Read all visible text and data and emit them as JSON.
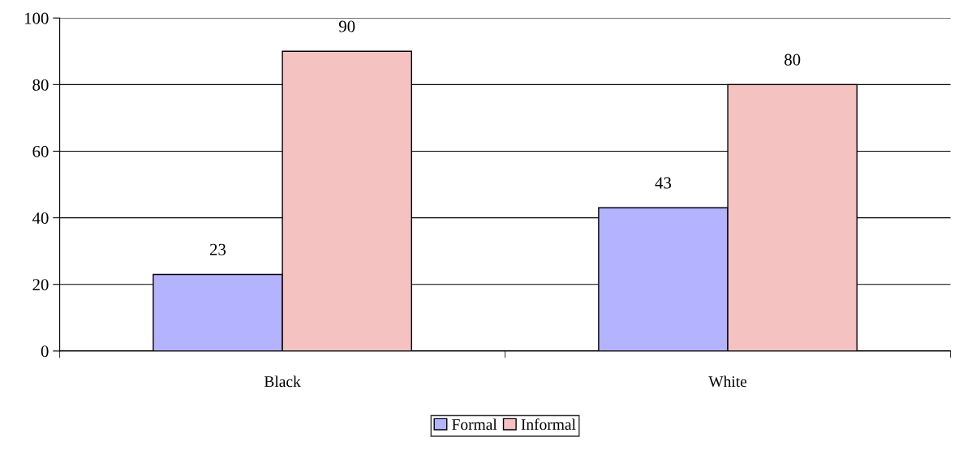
{
  "chart_data": {
    "type": "bar",
    "categories": [
      "Black",
      "White"
    ],
    "series": [
      {
        "name": "Formal",
        "color": "#b3b3ff",
        "values": [
          23,
          43
        ]
      },
      {
        "name": "Informal",
        "color": "#f5c2c2",
        "values": [
          90,
          80
        ]
      }
    ],
    "ylim": [
      0,
      100
    ],
    "yticks": [
      0,
      20,
      40,
      60,
      80,
      100
    ],
    "grid": "y",
    "legend": "bottom",
    "data_labels": true
  }
}
